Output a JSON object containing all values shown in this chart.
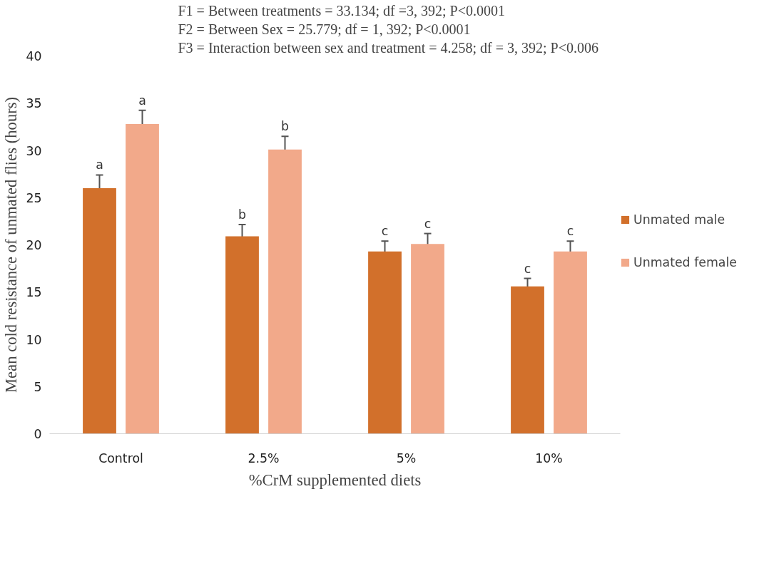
{
  "chart_data": {
    "type": "bar",
    "xlabel": "%CrM supplemented diets",
    "ylabel": "Mean cold resistance of unmated flies (hours)",
    "categories": [
      "Control",
      "2.5%",
      "5%",
      "10%"
    ],
    "series": [
      {
        "name": "Unmated male",
        "color": "#d2702b",
        "values": [
          26.0,
          20.9,
          19.3,
          15.6
        ],
        "errors": [
          1.4,
          1.25,
          1.1,
          0.85
        ]
      },
      {
        "name": "Unmated female",
        "color": "#f2a98a",
        "values": [
          32.8,
          30.1,
          20.1,
          19.3
        ],
        "errors": [
          1.45,
          1.4,
          1.1,
          1.1
        ]
      }
    ],
    "ylim": [
      0,
      40
    ],
    "yticks": [
      0,
      5,
      10,
      15,
      20,
      25,
      30,
      35,
      40
    ],
    "grid": false,
    "legend": "right",
    "annotations": [
      "F1 = Between treatments = 33.134; df =3, 392; P<0.0001",
      "F2 = Between Sex = 25.779; df = 1, 392; P<0.0001",
      "F3 = Interaction between sex and treatment = 4.258; df = 3, 392; P<0.006",
      "a",
      "a",
      "b",
      "b",
      "c",
      "c",
      "c",
      "c"
    ]
  }
}
